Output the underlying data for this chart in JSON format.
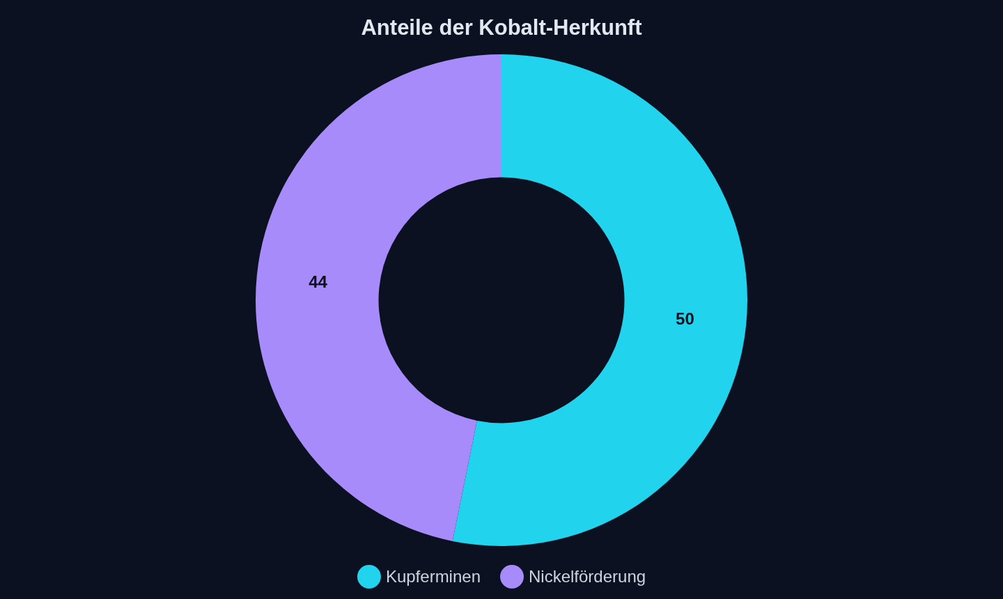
{
  "chart_data": {
    "type": "donut",
    "title": "Anteile der Kobalt-Herkunft",
    "categories": [
      "Kupferminen",
      "Nickelförderung"
    ],
    "values": [
      50,
      44
    ],
    "colors": [
      "#22d3ee",
      "#a78bfa"
    ],
    "data_labels": true,
    "legend": "bottom"
  }
}
